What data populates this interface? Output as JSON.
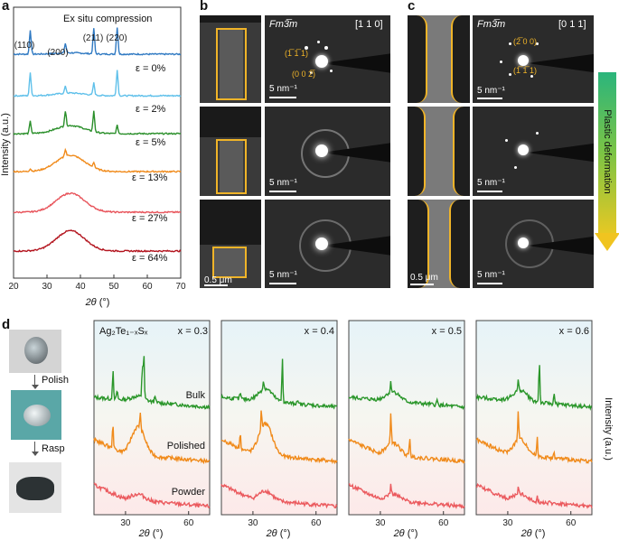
{
  "panel_labels": {
    "a": "a",
    "b": "b",
    "c": "c",
    "d": "d"
  },
  "colors": {
    "e0": "#2f79c2",
    "e2": "#5fc0ea",
    "e5": "#2a8f2a",
    "e13": "#f08a1a",
    "e27": "#e8545b",
    "e64": "#b3141e",
    "bulk": "#2a962a",
    "polished": "#f08a1a",
    "powder": "#eb5a5e",
    "gold": "#f0b428"
  },
  "panel_a": {
    "title": "Ex situ compression",
    "ylabel": "Intensity (a.u.)",
    "xlabel_sym": "2θ",
    "xlabel_unit": " (°)",
    "xticks": [
      "20",
      "30",
      "40",
      "50",
      "60",
      "70"
    ],
    "peaks": [
      "(110)",
      "(200)",
      "(211)",
      "(220)"
    ],
    "strains": [
      "ε = 0%",
      "ε = 2%",
      "ε = 5%",
      "ε = 13%",
      "ε = 27%",
      "ε = 64%"
    ]
  },
  "panel_b": {
    "group": "Fm3̅m",
    "zone": "[1 1 0]",
    "index1": "(1̅ 1̅ 1)",
    "index2": "(0 0 2̅)",
    "scale_recip": "5 nm⁻¹",
    "scale_real": "0.5 μm"
  },
  "panel_c": {
    "group": "Fm3̅m",
    "zone": "[0 1 1]",
    "index1": "(2̅ 0 0)",
    "index2": "(1̅ 1̅ 1)",
    "scale_recip": "5 nm⁻¹",
    "scale_real": "0.5 μm",
    "arrow_label": "Plastic deformation"
  },
  "panel_d": {
    "steps": [
      "Polish",
      "Rasp"
    ],
    "formula": "Ag₂Te₁₋ₓSₓ",
    "x_values": [
      "x = 0.3",
      "x = 0.4",
      "x = 0.5",
      "x = 0.6"
    ],
    "curve_labels": [
      "Bulk",
      "Polished",
      "Powder"
    ],
    "ylabel": "Intensity (a.u.)",
    "xlabel_sym": "2θ",
    "xlabel_unit": " (°)",
    "xticks": [
      "30",
      "60"
    ]
  },
  "chart_data": [
    {
      "type": "line",
      "title": "Ex situ compression",
      "xlabel": "2θ (°)",
      "ylabel": "Intensity (a.u.)",
      "xlim": [
        20,
        70
      ],
      "xticks": [
        20,
        30,
        40,
        50,
        60,
        70
      ],
      "peak_positions": [
        25,
        35.5,
        44,
        51
      ],
      "series": [
        {
          "name": "ε = 0%",
          "peaks": [
            [
              25,
              0.9
            ],
            [
              35.5,
              0.35
            ],
            [
              44,
              0.95
            ],
            [
              51,
              1.0
            ]
          ],
          "broad": 0.05
        },
        {
          "name": "ε = 2%",
          "peaks": [
            [
              25,
              0.85
            ],
            [
              35.5,
              0.25
            ],
            [
              44,
              0.45
            ],
            [
              51,
              0.95
            ]
          ],
          "broad": 0.1
        },
        {
          "name": "ε = 5%",
          "peaks": [
            [
              25,
              0.45
            ],
            [
              35.5,
              0.55
            ],
            [
              44,
              0.75
            ],
            [
              51,
              0.3
            ]
          ],
          "broad": 0.3
        },
        {
          "name": "ε = 13%",
          "peaks": [
            [
              25,
              0.1
            ],
            [
              35.5,
              0.25
            ],
            [
              44,
              0.2
            ]
          ],
          "broad": 0.6
        },
        {
          "name": "ε = 27%",
          "peaks": [],
          "broad": 0.7
        },
        {
          "name": "ε = 64%",
          "peaks": [],
          "broad": 0.75
        }
      ]
    }
  ]
}
